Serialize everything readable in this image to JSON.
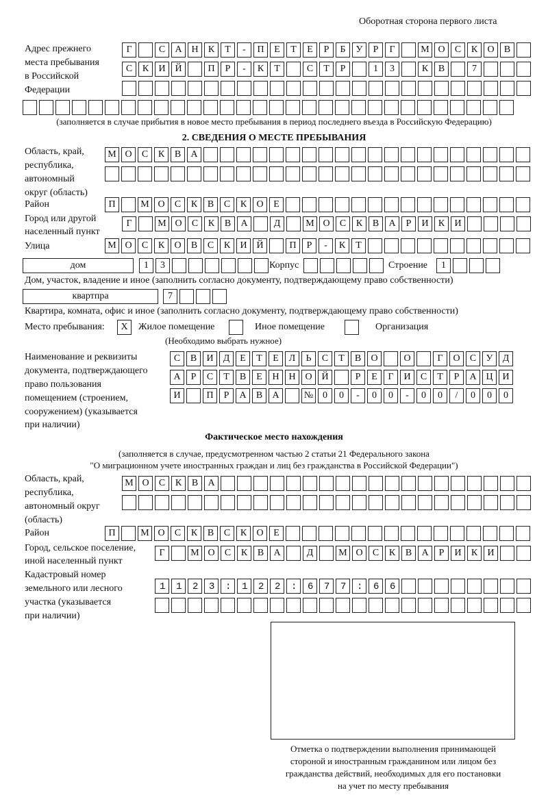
{
  "header": {
    "title": "Оборотная сторона первого листа"
  },
  "previous_address": {
    "label": [
      "Адрес прежнего",
      "места пребывания",
      "в Российской",
      "Федерации"
    ],
    "rows": [
      "Г САНКТ-ПЕТЕРБУРГ МОСКОВ",
      "СКИЙ ПР-КТ СТР 13 КВ 7",
      "",
      ""
    ],
    "note": "(заполняется в случае прибытия в новое место пребывания в период последнего въезда в Российскую Федерацию)"
  },
  "section2": {
    "title": "2. СВЕДЕНИЯ О МЕСТЕ ПРЕБЫВАНИЯ",
    "region_label": [
      "Область, край,",
      "республика,",
      "автономный",
      "округ (область)"
    ],
    "region_rows": [
      "МОСКВА",
      ""
    ],
    "district_label": "Район",
    "district": "П МОСКВСКОЕ",
    "city_label": [
      "Город или другой",
      "населенный пункт"
    ],
    "city": "Г МОСКВА Д МОСКВАРИКИ",
    "street_label": "Улица",
    "street": "МОСКОВСКИЙ ПР-КТ",
    "house_type": "дом",
    "house_number": "13",
    "korpus_label": "Корпус",
    "korpus": "",
    "building_label": "Строение",
    "building": "1",
    "house_note": "Дом, участок, владение и иное (заполнить согласно документу, подтверждающему право собственности)",
    "apt_type": "квартпра",
    "apt_number": "7",
    "apt_note": "Квартира, комната, офис и иное (заполнить согласно документу, подтверждающему право собственности)",
    "place_label": "Место пребывания:",
    "options": [
      {
        "label": "Жилое помещение",
        "mark": "X"
      },
      {
        "label": "Иное помещение",
        "mark": ""
      },
      {
        "label": "Организация",
        "mark": ""
      }
    ],
    "choose_note": "(Необходимо выбрать нужное)",
    "doc_label": [
      "Наименование и реквизиты",
      "документа, подтверждающего",
      "право пользования",
      "помещением (строением,",
      "сооружением) (указывается",
      "при наличии)"
    ],
    "doc_rows": [
      "СВИДЕТЕЛЬСТВО О ГОСУД",
      "АРСТВЕННОЙ РЕГИСТРАЦИ",
      "И ПРАВА №00-00-00/000"
    ]
  },
  "actual": {
    "title": "Фактическое место нахождения",
    "note": [
      "(заполняется в случае, предусмотренном частью 2 статьи 21 Федерального закона",
      "\"О миграционном учете иностранных граждан и лиц без гражданства в Российской Федерации\")"
    ],
    "region_label": [
      "Область, край,",
      "республика,",
      "автономный округ",
      "(область)"
    ],
    "region_rows": [
      "МОСКВА",
      ""
    ],
    "district_label": "Район",
    "district": "П МОСКВСКОЕ",
    "city_label": [
      "Город, сельское поселение,",
      "иной населенный пункт"
    ],
    "city": "Г МОСКВА Д МОСКВАРИКИ",
    "cadastral_label": [
      "Кадастровый номер",
      "земельного или лесного",
      "участка (указывается",
      "при наличии)"
    ],
    "cadastral_rows": [
      "1123:122:677:66",
      ""
    ]
  },
  "stamp": {
    "caption": [
      "Отметка о подтверждении выполнения принимающей",
      "стороной и иностранным гражданином или лицом без",
      "гражданства действий, необходимых для его постановки",
      "на учет по месту пребывания"
    ]
  }
}
